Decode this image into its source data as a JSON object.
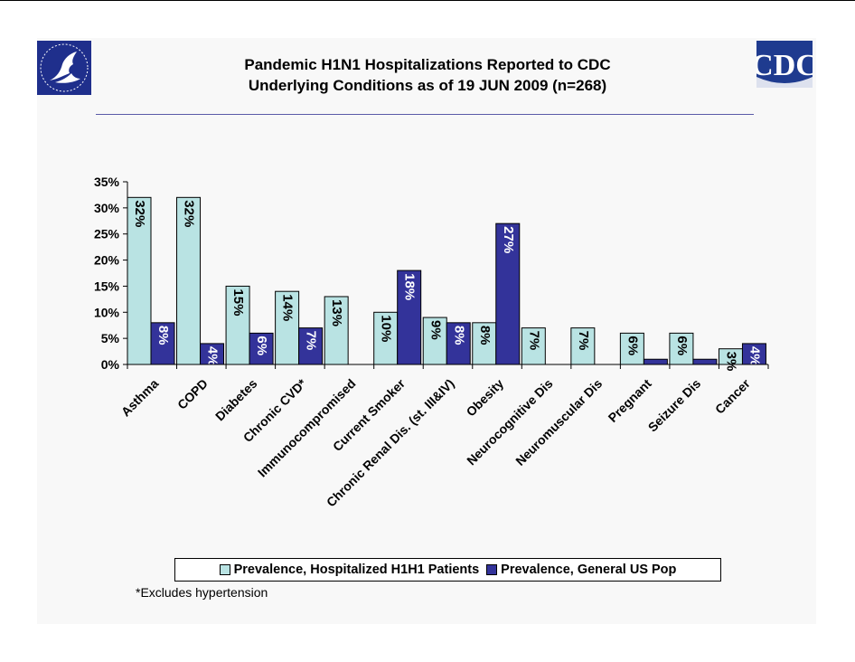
{
  "page": {
    "title_line1": "Pandemic H1N1 Hospitalizations Reported to CDC",
    "title_line2": "Underlying Conditions as of 19 JUN 2009 (n=268)",
    "footnote": "*Excludes hypertension",
    "logo_left": "hhs-eagle-seal",
    "logo_right": "CDC"
  },
  "chart_data": {
    "type": "bar",
    "title": "Pandemic H1N1 Hospitalizations Reported to CDC Underlying Conditions as of 19 JUN 2009 (n=268)",
    "categories": [
      "Asthma",
      "COPD",
      "Diabetes",
      "Chronic CVD*",
      "Immunocompromised",
      "Current Smoker",
      "Chronic Renal Dis. (st. III&IV)",
      "Obesity",
      "Neurocognitive Dis",
      "Neuromuscular Dis",
      "Pregnant",
      "Seizure Dis",
      "Cancer"
    ],
    "series": [
      {
        "name": "Prevalence, Hospitalized H1H1 Patients",
        "color": "#b9e3e3",
        "values": [
          32,
          32,
          15,
          14,
          13,
          10,
          9,
          8,
          7,
          7,
          6,
          6,
          3
        ],
        "labels": [
          "32%",
          "32%",
          "15%",
          "14%",
          "13%",
          "10%",
          "9%",
          "8%",
          "7%",
          "7%",
          "6%",
          "6%",
          "3%"
        ]
      },
      {
        "name": "Prevalence, General US Pop",
        "color": "#33339a",
        "values": [
          8,
          4,
          6,
          7,
          0,
          18,
          8,
          27,
          0,
          0,
          1,
          1,
          4
        ],
        "labels": [
          "8%",
          "4%",
          "6%",
          "7%",
          "",
          "18%",
          "8%",
          "27%",
          "",
          "",
          "",
          "",
          "4%"
        ]
      }
    ],
    "ylim": [
      0,
      35
    ],
    "yticks": [
      "0%",
      "5%",
      "10%",
      "15%",
      "20%",
      "25%",
      "30%",
      "35%"
    ],
    "legend_position": "bottom",
    "grid": false
  }
}
